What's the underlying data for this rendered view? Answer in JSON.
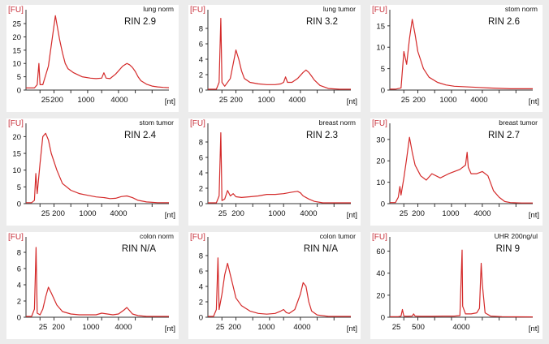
{
  "chart_data": [
    {
      "type": "line",
      "sample": "lung norm",
      "rin": "RIN 2.9",
      "ylabel": "[FU]",
      "xlabel": "[nt]",
      "yticks": [
        0,
        5,
        10,
        15,
        20,
        25
      ],
      "ylim": [
        0,
        29
      ],
      "xtick_labels": [
        "25",
        "200",
        "1000",
        "4000"
      ],
      "xtick_positions": [
        20,
        25,
        31,
        37,
        42,
        48,
        54,
        60
      ],
      "xlim": [
        15,
        66
      ],
      "series": [
        {
          "x": [
            15,
            18,
            19,
            19.6,
            20,
            21,
            23,
            25.5,
            27,
            28,
            29,
            30,
            32,
            35,
            38,
            40,
            42,
            42.8,
            43.6,
            45,
            47,
            49.5,
            51,
            52,
            53,
            54,
            55,
            56,
            58,
            60,
            62,
            64,
            66
          ],
          "y": [
            0.8,
            0.8,
            2,
            10,
            2,
            2,
            9,
            28,
            19,
            14,
            10,
            8,
            6.5,
            5,
            4.5,
            4.3,
            4.5,
            6.5,
            4.5,
            4.3,
            6,
            9,
            10,
            9.5,
            8.5,
            7,
            5,
            3.5,
            2.2,
            1.5,
            1.2,
            1,
            0.9
          ]
        }
      ]
    },
    {
      "type": "line",
      "sample": "lung tumor",
      "rin": "RIN 3.2",
      "ylabel": "[FU]",
      "xlabel": "[nt]",
      "yticks": [
        0,
        2,
        4,
        6,
        8
      ],
      "ylim": [
        0,
        10
      ],
      "xtick_labels": [
        "25",
        "200",
        "1000",
        "4000"
      ],
      "xtick_positions": [
        20,
        25,
        31,
        37,
        42,
        48,
        54,
        60
      ],
      "xlim": [
        15,
        66
      ],
      "series": [
        {
          "x": [
            15,
            18,
            19,
            19.6,
            20,
            21,
            23,
            25,
            26,
            27,
            28,
            30,
            33,
            36,
            39,
            41,
            42,
            42.7,
            43.4,
            45,
            47,
            49,
            50,
            51,
            52,
            53,
            55,
            58,
            62,
            66
          ],
          "y": [
            0.1,
            0.1,
            1,
            9.3,
            1,
            0.5,
            1.5,
            5.2,
            4,
            2.5,
            1.5,
            1,
            0.8,
            0.7,
            0.7,
            0.8,
            1,
            1.7,
            1,
            1,
            1.5,
            2.3,
            2.6,
            2.3,
            1.8,
            1.3,
            0.6,
            0.2,
            0.1,
            0.1
          ]
        }
      ]
    },
    {
      "type": "line",
      "sample": "stom norm",
      "rin": "RIN 2.6",
      "ylabel": "[FU]",
      "xlabel": "[nt]",
      "yticks": [
        0,
        5,
        10,
        15
      ],
      "ylim": [
        0,
        18
      ],
      "xtick_labels": [
        "25",
        "200",
        "1000",
        "4000"
      ],
      "xtick_positions": [
        20,
        25,
        31,
        37,
        42,
        48,
        54,
        60
      ],
      "xlim": [
        15,
        66
      ],
      "series": [
        {
          "x": [
            15,
            17,
            19,
            20,
            21,
            22,
            23,
            24,
            25,
            27,
            29,
            32,
            35,
            38,
            41,
            44,
            47,
            50,
            54,
            58,
            62,
            66
          ],
          "y": [
            0.2,
            0.2,
            0.5,
            9,
            6,
            12,
            16.5,
            13,
            9,
            5,
            3,
            1.8,
            1.2,
            0.9,
            0.8,
            0.7,
            0.6,
            0.5,
            0.4,
            0.3,
            0.3,
            0.3
          ]
        }
      ]
    },
    {
      "type": "line",
      "sample": "stom tumor",
      "rin": "RIN 2.4",
      "ylabel": "[FU]",
      "xlabel": "[nt]",
      "yticks": [
        0,
        5,
        10,
        15,
        20
      ],
      "ylim": [
        0,
        23
      ],
      "xtick_labels": [
        "25",
        "200",
        "1000",
        "4000"
      ],
      "xtick_positions": [
        20,
        25,
        31,
        37,
        42,
        48,
        54,
        60
      ],
      "xlim": [
        15,
        66
      ],
      "series": [
        {
          "x": [
            15,
            17,
            18,
            18.5,
            19,
            20,
            21,
            22,
            23,
            24,
            26,
            28,
            31,
            34,
            37,
            40,
            43,
            45,
            47,
            49,
            51,
            53,
            55,
            58,
            62,
            66
          ],
          "y": [
            0.3,
            0.3,
            1,
            9,
            3,
            12,
            20,
            21,
            19,
            15,
            10,
            6,
            4,
            3,
            2.5,
            2,
            1.8,
            1.5,
            1.6,
            2.1,
            2.3,
            1.8,
            1,
            0.5,
            0.3,
            0.3
          ]
        }
      ]
    },
    {
      "type": "line",
      "sample": "breast norm",
      "rin": "RIN 2.3",
      "ylabel": "[FU]",
      "xlabel": "[nt]",
      "yticks": [
        0,
        2,
        4,
        6,
        8
      ],
      "ylim": [
        0,
        10
      ],
      "xtick_labels": [
        "25",
        "200",
        "1000",
        "4000"
      ],
      "xtick_positions": [
        20,
        25,
        31,
        37,
        42,
        48,
        54,
        60
      ],
      "xlim": [
        15,
        66
      ],
      "series": [
        {
          "x": [
            15,
            18,
            19,
            19.6,
            20,
            21,
            22,
            23,
            24,
            25,
            27,
            30,
            33,
            36,
            39,
            42,
            45,
            47,
            48,
            49,
            51,
            53,
            56,
            59,
            62,
            66
          ],
          "y": [
            0.1,
            0.1,
            1,
            9.2,
            0.4,
            0.6,
            1.7,
            1,
            1.3,
            0.9,
            0.8,
            0.9,
            1,
            1.2,
            1.2,
            1.3,
            1.5,
            1.6,
            1.4,
            1,
            0.6,
            0.3,
            0.1,
            0.1,
            0.1,
            0.1
          ]
        }
      ]
    },
    {
      "type": "line",
      "sample": "breast tumor",
      "rin": "RIN 2.7",
      "ylabel": "[FU]",
      "xlabel": "[nt]",
      "yticks": [
        0,
        10,
        20,
        30
      ],
      "ylim": [
        0,
        36
      ],
      "xtick_labels": [
        "25",
        "200",
        "1000",
        "4000"
      ],
      "xtick_positions": [
        20,
        25,
        31,
        37,
        42,
        48,
        54,
        60
      ],
      "xlim": [
        15,
        66
      ],
      "series": [
        {
          "x": [
            15,
            17,
            18,
            18.6,
            19,
            20,
            21,
            22,
            23,
            24,
            26,
            28,
            30,
            33,
            36,
            38,
            40,
            42,
            42.6,
            43,
            44,
            46,
            48,
            50,
            52,
            54,
            56,
            58,
            62,
            66
          ],
          "y": [
            0.5,
            0.5,
            3,
            8,
            4,
            12,
            21,
            31,
            24,
            18,
            13,
            11,
            14,
            12,
            14,
            15,
            16,
            18,
            24,
            17,
            14,
            14,
            15,
            13,
            6,
            3,
            1,
            0.5,
            0.3,
            0.3
          ]
        }
      ]
    },
    {
      "type": "line",
      "sample": "colon norm",
      "rin": "RIN N/A",
      "ylabel": "[FU]",
      "xlabel": "[nt]",
      "yticks": [
        0,
        2,
        4,
        6,
        8
      ],
      "ylim": [
        0,
        9.5
      ],
      "xtick_labels": [
        "25",
        "200",
        "1000",
        "4000"
      ],
      "xtick_positions": [
        20,
        25,
        31,
        37,
        42,
        48,
        54,
        60
      ],
      "xlim": [
        15,
        66
      ],
      "series": [
        {
          "x": [
            15,
            17,
            18,
            18.6,
            19,
            20,
            21,
            22,
            23,
            24,
            26,
            28,
            31,
            34,
            37,
            40,
            42,
            44,
            46,
            48,
            50,
            51,
            52,
            53,
            55,
            58,
            62,
            66
          ],
          "y": [
            0.1,
            0.1,
            1,
            8.6,
            0.5,
            0.3,
            1,
            2.5,
            3.7,
            3,
            1.5,
            0.7,
            0.4,
            0.3,
            0.3,
            0.3,
            0.5,
            0.4,
            0.3,
            0.4,
            0.9,
            1.2,
            0.8,
            0.4,
            0.2,
            0.1,
            0.1,
            0.1
          ]
        }
      ]
    },
    {
      "type": "line",
      "sample": "colon tumor",
      "rin": "RIN N/A",
      "ylabel": "[FU]",
      "xlabel": "[nt]",
      "yticks": [
        0,
        2,
        4,
        6,
        8
      ],
      "ylim": [
        0,
        10
      ],
      "xtick_labels": [
        "25",
        "200",
        "1000",
        "4000"
      ],
      "xtick_positions": [
        20,
        25,
        31,
        37,
        42,
        48,
        54,
        60
      ],
      "xlim": [
        15,
        66
      ],
      "series": [
        {
          "x": [
            15,
            17,
            18,
            18.6,
            19,
            20,
            21,
            22,
            23,
            24,
            25,
            27,
            30,
            33,
            36,
            39,
            41,
            42,
            43,
            44,
            46,
            48,
            49,
            50,
            51,
            52,
            54,
            58,
            62,
            66
          ],
          "y": [
            0.1,
            0.1,
            1,
            7.7,
            1,
            3,
            5.5,
            7,
            5.5,
            4,
            2.5,
            1.5,
            0.8,
            0.5,
            0.4,
            0.5,
            0.8,
            1,
            0.6,
            0.5,
            1,
            3,
            4.5,
            4,
            2,
            0.8,
            0.3,
            0.1,
            0.1,
            0.1
          ]
        }
      ]
    },
    {
      "type": "line",
      "sample": "UHR 200ng/ul",
      "rin": "RIN 9",
      "ylabel": "[FU]",
      "xlabel": "[nt]",
      "yticks": [
        0,
        20,
        40,
        60
      ],
      "ylim": [
        0,
        70
      ],
      "xtick_labels": [
        "25",
        "500",
        "4000"
      ],
      "xtick_positions": [
        20,
        25,
        31,
        37,
        42,
        48,
        54,
        60
      ],
      "xlim": [
        15,
        66
      ],
      "series": [
        {
          "x": [
            15,
            18,
            19,
            19.5,
            20,
            21,
            23,
            23.5,
            24,
            26,
            30,
            34,
            38,
            40,
            40.8,
            41,
            42,
            44,
            46,
            47,
            47.6,
            48,
            49,
            51,
            55,
            60,
            66
          ],
          "y": [
            0.5,
            0.5,
            1,
            7,
            1,
            0.8,
            1,
            3,
            1,
            0.8,
            0.8,
            1,
            1,
            1.5,
            61,
            10,
            3,
            3,
            4,
            8,
            49,
            30,
            4,
            1,
            0.5,
            0.4,
            0.3
          ]
        }
      ]
    }
  ]
}
